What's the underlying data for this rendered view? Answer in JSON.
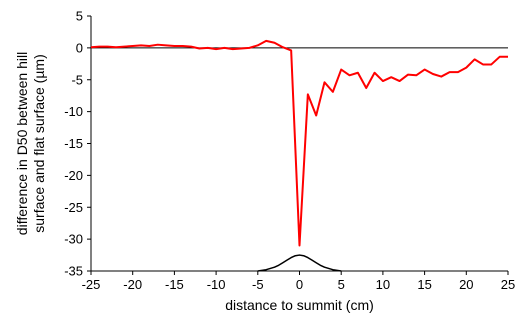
{
  "chart_data": {
    "type": "line",
    "title": "",
    "xlabel": "distance to summit (cm)",
    "ylabel_lines": [
      "difference in D50 between hill",
      "surface and flat surface (µm)"
    ],
    "xlim": [
      -25,
      25
    ],
    "ylim": [
      -35,
      5
    ],
    "xticks": [
      -25,
      -20,
      -15,
      -10,
      -5,
      0,
      5,
      10,
      15,
      20,
      25
    ],
    "yticks": [
      5,
      0,
      -5,
      -10,
      -15,
      -20,
      -25,
      -30,
      -35
    ],
    "xtick_labels": [
      "-25",
      "-20",
      "-15",
      "-10",
      "-5",
      "0",
      "5",
      "10",
      "15",
      "20",
      "25"
    ],
    "ytick_labels": [
      "5",
      "0",
      "-5",
      "-10",
      "-15",
      "-20",
      "-25",
      "-30",
      "-35"
    ],
    "grid": false,
    "zero_line": true,
    "series": [
      {
        "color": "#ff0000",
        "x": [
          -25,
          -24,
          -23,
          -22,
          -21,
          -20,
          -19,
          -18,
          -17,
          -16,
          -15,
          -14,
          -13,
          -12,
          -11,
          -10,
          -9,
          -8,
          -7,
          -6,
          -5,
          -4,
          -3,
          -2,
          -1,
          0,
          1,
          2,
          3,
          4,
          5,
          6,
          7,
          8,
          9,
          10,
          11,
          12,
          13,
          14,
          15,
          16,
          17,
          18,
          19,
          20,
          21,
          22,
          23,
          24,
          25
        ],
        "y": [
          0.1,
          0.2,
          0.2,
          0.1,
          0.2,
          0.3,
          0.4,
          0.3,
          0.5,
          0.4,
          0.3,
          0.3,
          0.2,
          -0.1,
          0.0,
          -0.2,
          0.0,
          -0.2,
          -0.1,
          0.0,
          0.4,
          1.1,
          0.8,
          0.1,
          -0.4,
          -31.0,
          -7.3,
          -10.6,
          -5.4,
          -6.9,
          -3.4,
          -4.3,
          -3.9,
          -6.3,
          -3.9,
          -5.2,
          -4.6,
          -5.2,
          -4.2,
          -4.3,
          -3.4,
          -4.1,
          -4.5,
          -3.8,
          -3.8,
          -3.1,
          -1.8,
          -2.6,
          -2.6,
          -1.4,
          -1.4
        ]
      },
      {
        "color": "#000000",
        "x": [
          -5,
          -4.5,
          -4,
          -3.5,
          -3,
          -2.5,
          -2,
          -1.5,
          -1,
          -0.5,
          0,
          0.5,
          1,
          1.5,
          2,
          2.5,
          3,
          3.5,
          4,
          4.5,
          5
        ],
        "y": [
          -35.0,
          -34.9,
          -34.8,
          -34.6,
          -34.4,
          -34.1,
          -33.7,
          -33.3,
          -32.9,
          -32.6,
          -32.5,
          -32.6,
          -32.9,
          -33.3,
          -33.7,
          -34.1,
          -34.4,
          -34.6,
          -34.8,
          -34.9,
          -35.0
        ]
      }
    ]
  }
}
